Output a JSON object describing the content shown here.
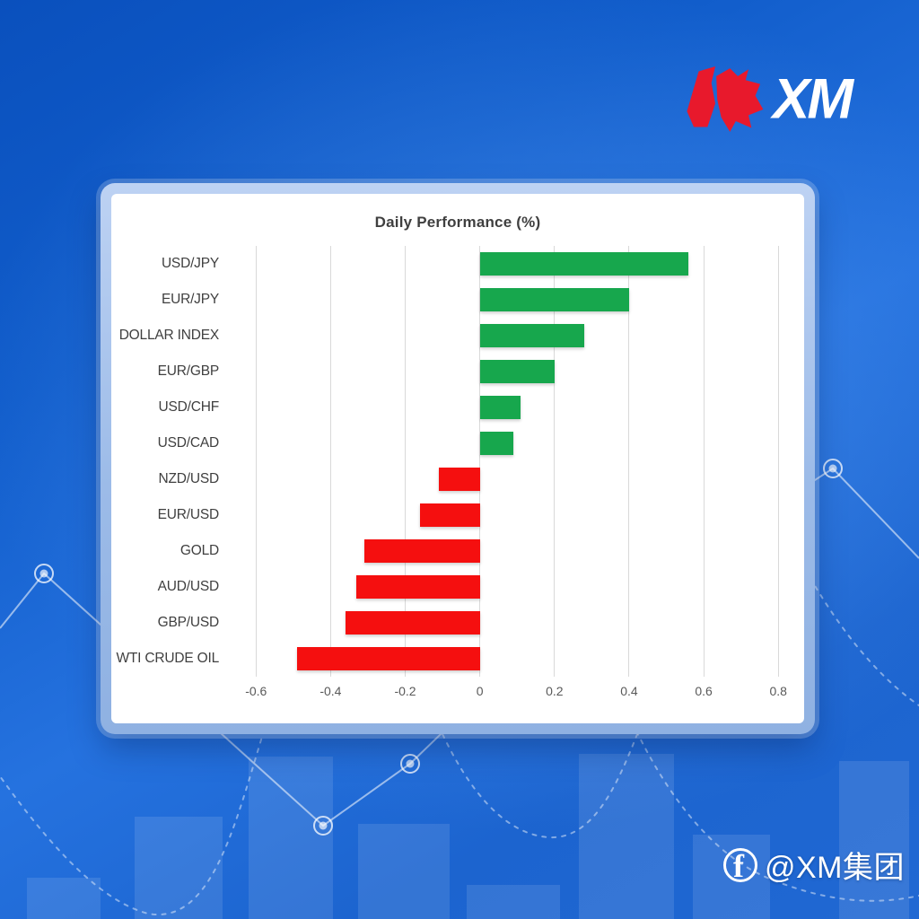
{
  "brand": {
    "logo_text": "XM",
    "bull_color": "#e8192c"
  },
  "footer": {
    "handle": "@XM集团",
    "facebook_letter": "f"
  },
  "chart_data": {
    "type": "bar",
    "orientation": "horizontal",
    "title": "Daily Performance (%)",
    "categories": [
      "USD/JPY",
      "EUR/JPY",
      "DOLLAR INDEX",
      "EUR/GBP",
      "USD/CHF",
      "USD/CAD",
      "NZD/USD",
      "EUR/USD",
      "GOLD",
      "AUD/USD",
      "GBP/USD",
      "WTI CRUDE OIL"
    ],
    "values": [
      0.56,
      0.4,
      0.28,
      0.2,
      0.11,
      0.09,
      -0.11,
      -0.16,
      -0.31,
      -0.33,
      -0.36,
      -0.49
    ],
    "xlim": [
      -0.68,
      0.85
    ],
    "xticks": [
      -0.6,
      -0.4,
      -0.2,
      0,
      0.2,
      0.4,
      0.6,
      0.8
    ],
    "grid": true,
    "legend": "none",
    "positive_color": "#17a74d",
    "negative_color": "#f50f0f",
    "gridline_color": "#d9d9d9",
    "title_color": "#3f3f3f",
    "category_label_color": "#3f3f3f",
    "tick_label_color": "#595959"
  }
}
